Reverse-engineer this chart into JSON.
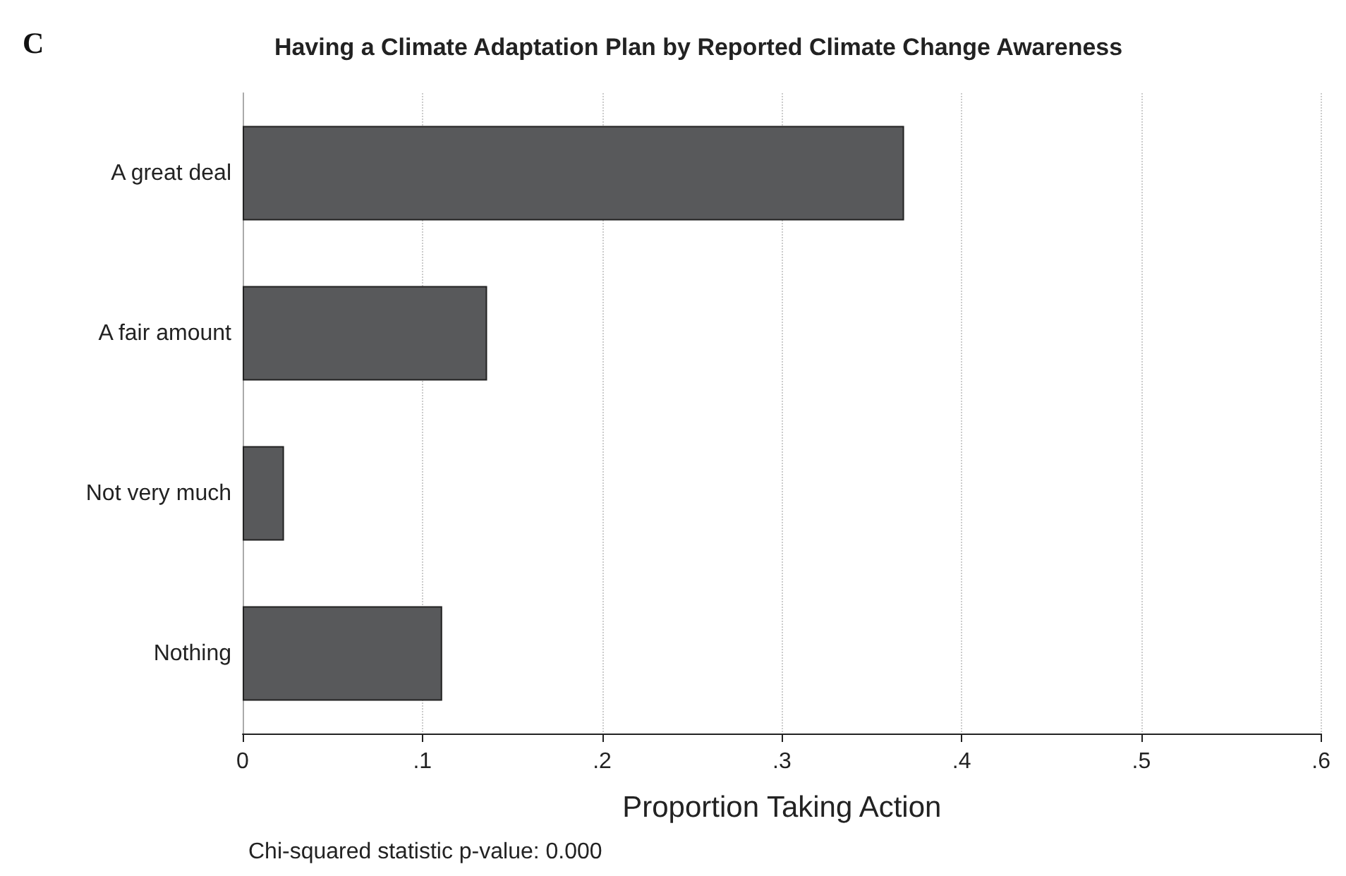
{
  "chart_data": {
    "type": "bar",
    "orientation": "horizontal",
    "title": "Having a Climate Adaptation Plan by Reported Climate Change Awareness",
    "xlabel": "Proportion Taking Action",
    "categories": [
      "A great deal",
      "A fair amount",
      "Not very much",
      "Nothing"
    ],
    "values": [
      0.368,
      0.136,
      0.023,
      0.111
    ],
    "color": "#58595b",
    "xlim": [
      0,
      0.6
    ],
    "xticks": [
      0,
      {
        "value": 0.1,
        "label": ".1"
      },
      {
        "value": 0.2,
        "label": ".2"
      },
      {
        "value": 0.3,
        "label": ".3"
      },
      {
        "value": 0.4,
        "label": ".4"
      },
      {
        "value": 0.5,
        "label": ".5"
      },
      {
        "value": 0.6,
        "label": ".6"
      }
    ],
    "grid": "x",
    "annotations": [
      "C",
      "Chi-squared statistic p-value: 0.000"
    ]
  }
}
